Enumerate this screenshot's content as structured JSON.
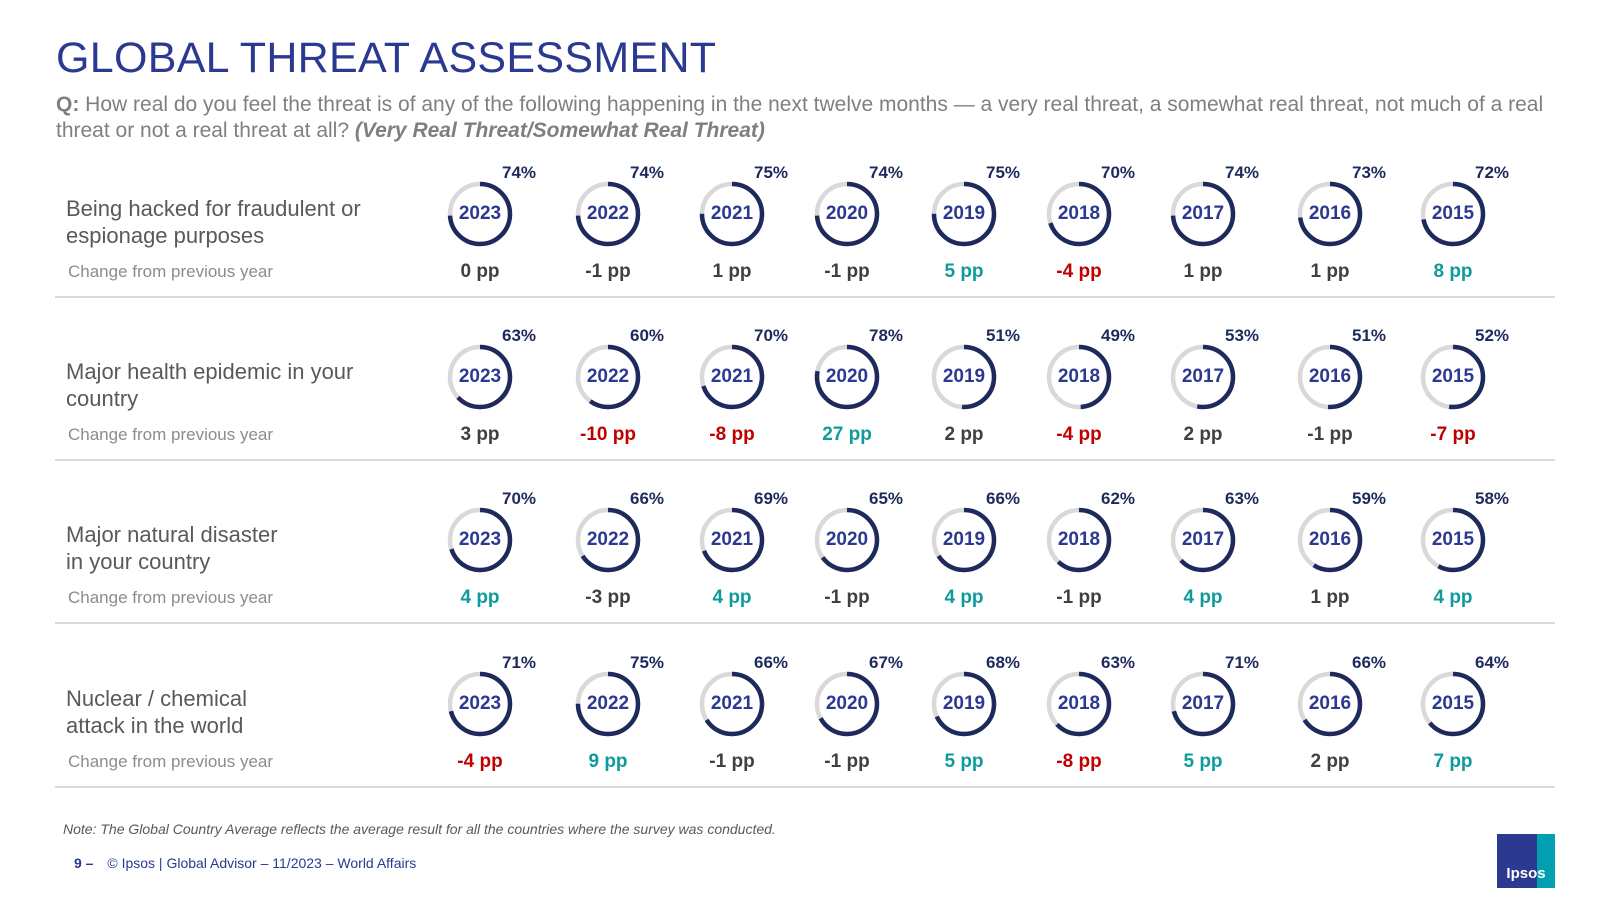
{
  "title": "GLOBAL THREAT ASSESSMENT",
  "question": {
    "prefix": "Q:",
    "text": "How real do you feel the threat is of any of the following happening in the next twelve months — a very real threat, a somewhat real threat, not much of a real threat or not a real threat at all?",
    "emphasis": "(Very Real Threat/Somewhat Real Threat)"
  },
  "change_label": "Change from previous year",
  "colors": {
    "title": "#2b3990",
    "donut_fill": "#1f2a5c",
    "donut_track": "#d9d9d9",
    "positive": "#0f9b9b",
    "negative": "#c00000",
    "neutral": "#404040"
  },
  "chart_data": {
    "type": "donut-grid",
    "title": "GLOBAL THREAT ASSESSMENT",
    "years": [
      "2023",
      "2022",
      "2021",
      "2020",
      "2019",
      "2018",
      "2017",
      "2016",
      "2015"
    ],
    "series": [
      {
        "name": "Being hacked for fraudulent or espionage purposes",
        "values": [
          74,
          74,
          75,
          74,
          75,
          70,
          74,
          73,
          72
        ],
        "value_labels": [
          "74%",
          "74%",
          "75%",
          "74%",
          "75%",
          "70%",
          "74%",
          "73%",
          "72%"
        ],
        "changes": [
          "0 pp",
          "-1 pp",
          "1 pp",
          "-1 pp",
          "5 pp",
          "-4 pp",
          "1 pp",
          "1 pp",
          "8 pp"
        ],
        "change_values": [
          0,
          -1,
          1,
          -1,
          5,
          -4,
          1,
          1,
          8
        ]
      },
      {
        "name": "Major health epidemic in your country",
        "values": [
          63,
          60,
          70,
          78,
          51,
          49,
          53,
          51,
          52
        ],
        "value_labels": [
          "63%",
          "60%",
          "70%",
          "78%",
          "51%",
          "49%",
          "53%",
          "51%",
          "52%"
        ],
        "changes": [
          "3 pp",
          "-10 pp",
          "-8 pp",
          "27 pp",
          "2 pp",
          "-4 pp",
          "2 pp",
          "-1 pp",
          "-7 pp"
        ],
        "change_values": [
          3,
          -10,
          -8,
          27,
          2,
          -4,
          2,
          -1,
          -7
        ]
      },
      {
        "name": "Major natural disaster in your country",
        "values": [
          70,
          66,
          69,
          65,
          66,
          62,
          63,
          59,
          58
        ],
        "value_labels": [
          "70%",
          "66%",
          "69%",
          "65%",
          "66%",
          "62%",
          "63%",
          "59%",
          "58%"
        ],
        "changes": [
          "4 pp",
          "-3 pp",
          "4 pp",
          "-1 pp",
          "4 pp",
          "-1 pp",
          "4 pp",
          "1 pp",
          "4 pp"
        ],
        "change_values": [
          4,
          -3,
          4,
          -1,
          4,
          -1,
          4,
          1,
          4
        ]
      },
      {
        "name": "Nuclear / chemical attack in the world",
        "values": [
          71,
          75,
          66,
          67,
          68,
          63,
          71,
          66,
          64
        ],
        "value_labels": [
          "71%",
          "75%",
          "66%",
          "67%",
          "68%",
          "63%",
          "71%",
          "66%",
          "64%"
        ],
        "changes": [
          "-4 pp",
          "9 pp",
          "-1 pp",
          "-1 pp",
          "5 pp",
          "-8 pp",
          "5 pp",
          "2 pp",
          "7 pp"
        ],
        "change_values": [
          -4,
          9,
          -1,
          -1,
          5,
          -8,
          5,
          2,
          7
        ]
      }
    ]
  },
  "row_labels": [
    {
      "line1": "Being hacked for fraudulent or",
      "line2": "espionage purposes"
    },
    {
      "line1": "Major health epidemic in your",
      "line2": "country"
    },
    {
      "line1": "Major natural disaster",
      "line2": "in your country"
    },
    {
      "line1": "Nuclear / chemical",
      "line2": "attack in the world"
    }
  ],
  "note": "Note: The Global Country Average reflects the average result for all the countries where the survey was conducted.",
  "footer": {
    "page_number": "9 –",
    "text": "© Ipsos | Global Advisor – 11/2023 – World Affairs"
  },
  "logo_text": "Ipsos"
}
